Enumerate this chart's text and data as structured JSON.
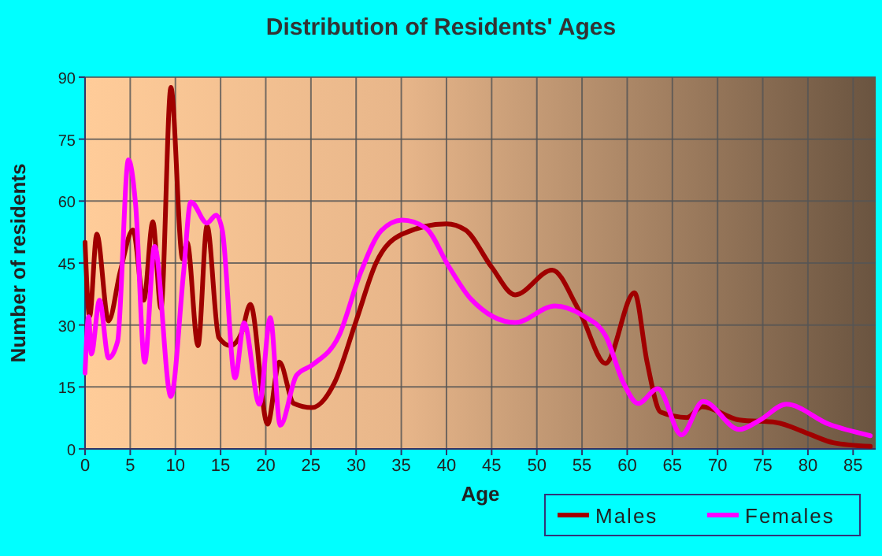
{
  "chart_data": {
    "type": "line",
    "title": "Distribution of Residents' Ages",
    "xlabel": "Age",
    "ylabel": "Number of residents",
    "xlim": [
      0,
      87.5
    ],
    "xticks": [
      0,
      5,
      10,
      15,
      20,
      25,
      30,
      35,
      40,
      45,
      50,
      55,
      60,
      65,
      70,
      75,
      80,
      85
    ],
    "ylim": [
      0,
      90
    ],
    "yticks": [
      0,
      15,
      30,
      45,
      60,
      75,
      90
    ],
    "grid": true,
    "legend": "bottom",
    "marker": "none",
    "line_style": "solid",
    "series": [
      {
        "name": "Males",
        "color": "#a00000",
        "x": [
          0,
          0.5,
          1.3,
          2.6,
          3.9,
          5.3,
          6.5,
          7.5,
          8.4,
          9.5,
          10.8,
          11.3,
          12.5,
          13.5,
          14.8,
          16.1,
          17.3,
          18.3,
          20.2,
          21.5,
          23.1,
          25.1,
          27.6,
          30,
          32.2,
          35.1,
          40,
          42.1,
          45,
          47.6,
          51.7,
          54.3,
          55,
          57.6,
          60.8,
          62.2,
          63.7,
          66.6,
          68.3,
          72.4,
          76.5,
          79.9,
          82.8,
          86.9
        ],
        "values": [
          50,
          32,
          52,
          31,
          43,
          53,
          36,
          55,
          34,
          87.5,
          46,
          50,
          25,
          54,
          27,
          25,
          28,
          35,
          6,
          21,
          11,
          10,
          16,
          31,
          45,
          52,
          54.5,
          53,
          44,
          37.3,
          43.3,
          35,
          32,
          20.7,
          37.8,
          21,
          8.9,
          7.6,
          10.2,
          7,
          6.4,
          3.8,
          1.5,
          0.6
        ]
      },
      {
        "name": "Females",
        "color": "#ff00ff",
        "x": [
          0,
          0.4,
          0.7,
          1.6,
          2.6,
          3.6,
          4.8,
          5.6,
          6.6,
          7.7,
          9.5,
          10.9,
          11.7,
          13.5,
          14.5,
          15.2,
          16.6,
          17.6,
          19.3,
          20.5,
          21.6,
          23.4,
          25.2,
          28.1,
          30.5,
          32.8,
          35.1,
          37.7,
          40.3,
          42.7,
          47.6,
          52,
          55,
          57.6,
          59.6,
          61.2,
          63.4,
          66,
          68.4,
          72.4,
          74.7,
          77.6,
          82.3,
          86.9
        ],
        "values": [
          18.4,
          32,
          23,
          36,
          22,
          26,
          70,
          59,
          21,
          49,
          12.7,
          42.6,
          59.8,
          54.7,
          56.6,
          52.8,
          17.2,
          30.5,
          10.8,
          31.8,
          5.7,
          17.8,
          20.4,
          27.4,
          42.7,
          52.9,
          55.4,
          53.5,
          44,
          36.3,
          30.6,
          34.6,
          32.4,
          27.4,
          15.9,
          11,
          14.6,
          3.4,
          11.5,
          4.7,
          7,
          10.8,
          6,
          3.2
        ]
      }
    ]
  }
}
